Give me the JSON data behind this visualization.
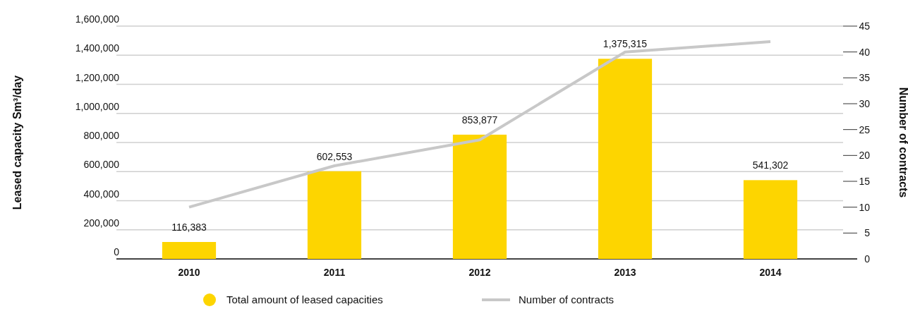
{
  "chart_data": {
    "type": "bar",
    "categories": [
      "2010",
      "2011",
      "2012",
      "2013",
      "2014"
    ],
    "series": [
      {
        "name": "Total amount of leased capacities",
        "color": "#fdd500",
        "values": [
          116383,
          602553,
          853877,
          1375315,
          541302
        ]
      },
      {
        "name": "Number of contracts",
        "type": "line",
        "axis": "y2",
        "color": "#c8c8c8",
        "values": [
          10,
          18,
          23,
          40,
          42
        ]
      }
    ],
    "ylabel": "Leased capacity Sm³/day",
    "y2label": "Number of contracts",
    "ylim": [
      0,
      1600000
    ],
    "yticks": [
      {
        "value": 0,
        "label": "0"
      },
      {
        "value": 200000,
        "label": "200,000"
      },
      {
        "value": 400000,
        "label": "400,000"
      },
      {
        "value": 600000,
        "label": "600,000"
      },
      {
        "value": 800000,
        "label": "800,000"
      },
      {
        "value": 1000000,
        "label": "1,000,000"
      },
      {
        "value": 1200000,
        "label": "1,200,000"
      },
      {
        "value": 1400000,
        "label": "1,400,000"
      },
      {
        "value": 1600000,
        "label": "1,600,000"
      }
    ],
    "y2lim": [
      0,
      45
    ],
    "y2ticks": [
      0,
      5,
      10,
      15,
      20,
      25,
      30,
      35,
      40,
      45
    ],
    "value_labels": [
      "116,383",
      "602,553",
      "853,877",
      "1,375,315",
      "541,302"
    ],
    "grid": "y",
    "legend": "bottom",
    "marker": "none"
  }
}
